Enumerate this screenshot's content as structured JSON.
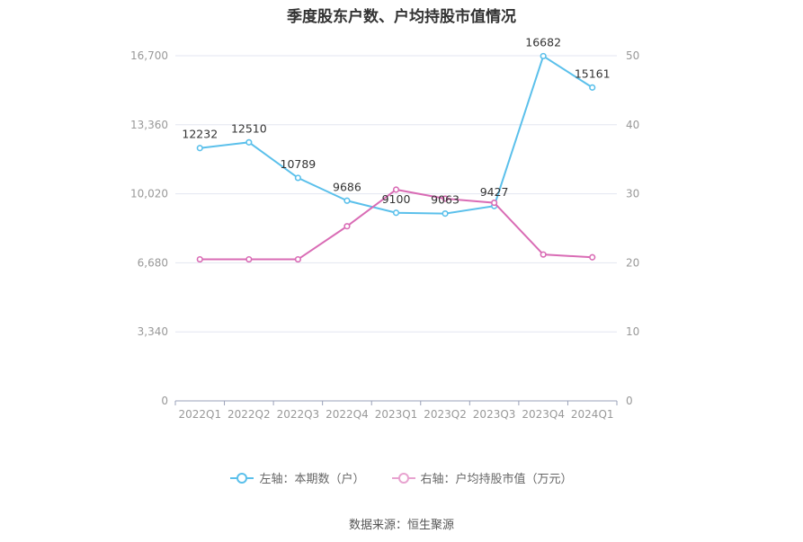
{
  "chart_data": {
    "type": "line",
    "title": "季度股东户数、户均持股市值情况",
    "categories": [
      "2022Q1",
      "2022Q2",
      "2022Q3",
      "2022Q4",
      "2023Q1",
      "2023Q2",
      "2023Q3",
      "2023Q4",
      "2024Q1"
    ],
    "series": [
      {
        "name": "左轴：本期数（户）",
        "axis": "left",
        "color": "#5bc0eb",
        "values": [
          12232,
          12510,
          10789,
          9686,
          9100,
          9063,
          9427,
          16682,
          15161
        ],
        "data_labels": [
          "12232",
          "12510",
          "10789",
          "9686",
          "9100",
          "9063",
          "9427",
          "16682",
          "15161"
        ]
      },
      {
        "name": "右轴：户均持股市值（万元）",
        "axis": "right",
        "color": "#d96cb5",
        "values": [
          20.5,
          20.5,
          20.5,
          25.3,
          30.6,
          29.3,
          28.7,
          21.2,
          20.8
        ]
      }
    ],
    "y_left": {
      "ylim": [
        0,
        16700
      ],
      "ticks": [
        "0",
        "3,340",
        "6,680",
        "10,020",
        "13,360",
        "16,700"
      ]
    },
    "y_right": {
      "ylim": [
        0,
        50
      ],
      "ticks": [
        "0",
        "10",
        "20",
        "30",
        "40",
        "50"
      ]
    },
    "grid": true,
    "legend_position": "bottom"
  },
  "source": "数据来源：恒生聚源"
}
